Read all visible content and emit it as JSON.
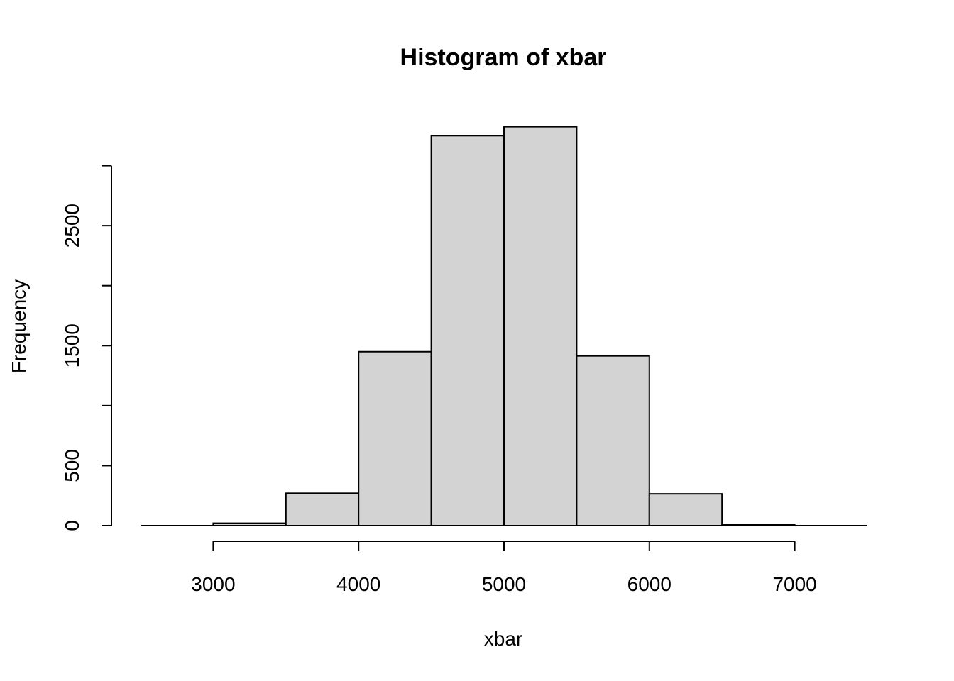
{
  "chart_data": {
    "type": "bar",
    "title": "Histogram of xbar",
    "xlabel": "xbar",
    "ylabel": "Frequency",
    "bins": [
      {
        "start": 2500,
        "end": 3000,
        "count": 0
      },
      {
        "start": 3000,
        "end": 3500,
        "count": 20
      },
      {
        "start": 3500,
        "end": 4000,
        "count": 270
      },
      {
        "start": 4000,
        "end": 4500,
        "count": 1450
      },
      {
        "start": 4500,
        "end": 5000,
        "count": 3250
      },
      {
        "start": 5000,
        "end": 5500,
        "count": 3325
      },
      {
        "start": 5500,
        "end": 6000,
        "count": 1415
      },
      {
        "start": 6000,
        "end": 6500,
        "count": 265
      },
      {
        "start": 6500,
        "end": 7000,
        "count": 10
      },
      {
        "start": 7000,
        "end": 7500,
        "count": 0
      }
    ],
    "xlim": [
      2500,
      7500
    ],
    "ylim": [
      0,
      3500
    ],
    "x_ticks": [
      3000,
      4000,
      5000,
      6000,
      7000
    ],
    "x_tick_labels": [
      "3000",
      "4000",
      "5000",
      "6000",
      "7000"
    ],
    "y_ticks": [
      0,
      500,
      1000,
      1500,
      2000,
      2500,
      3000
    ],
    "y_tick_labels": [
      "0",
      "500",
      "",
      "1500",
      "",
      "2500",
      ""
    ],
    "grid": false,
    "legend": "none",
    "colors": {
      "bar_fill": "#d3d3d3",
      "bar_stroke": "#000000",
      "axis": "#000000",
      "background": "#ffffff"
    }
  }
}
